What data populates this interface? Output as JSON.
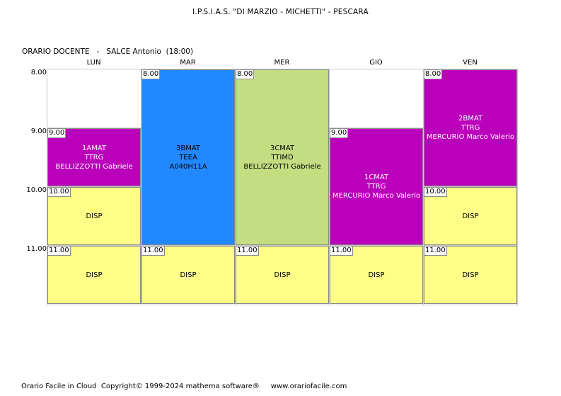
{
  "title": "I.P.S.I.A.S. \"DI MARZIO - MICHETTI\" - PESCARA",
  "teacher": {
    "label": "ORARIO DOCENTE",
    "name": "SALCE Antonio",
    "hours": "(18:00)"
  },
  "days": [
    "LUN",
    "MAR",
    "MER",
    "GIO",
    "VEN"
  ],
  "hours": [
    "8.00",
    "9.00",
    "10.00",
    "11.00"
  ],
  "colors": {
    "yellow": "#ffff88",
    "magenta": "#bb00bb",
    "blue": "#2288ff",
    "green": "#c4dd80",
    "empty": "#ffffff"
  },
  "lessons": [
    {
      "day": 0,
      "start": 1,
      "span": 1,
      "time": "9.00",
      "lines": [
        "1AMAT",
        "TTRG",
        "BELLIZZOTTI Gabriele"
      ],
      "color": "#bb00bb",
      "text_color": "#ffffff"
    },
    {
      "day": 0,
      "start": 2,
      "span": 1,
      "time": "10.00",
      "lines": [
        "DISP"
      ],
      "color": "#ffff88",
      "text_color": "#000000"
    },
    {
      "day": 0,
      "start": 3,
      "span": 1,
      "time": "11.00",
      "lines": [
        "DISP"
      ],
      "color": "#ffff88",
      "text_color": "#000000"
    },
    {
      "day": 1,
      "start": 0,
      "span": 3,
      "time": "8.00",
      "lines": [
        "3BMAT",
        "TEEA",
        "A040H11A"
      ],
      "color": "#2288ff",
      "text_color": "#000000"
    },
    {
      "day": 1,
      "start": 3,
      "span": 1,
      "time": "11.00",
      "lines": [
        "DISP"
      ],
      "color": "#ffff88",
      "text_color": "#000000"
    },
    {
      "day": 2,
      "start": 0,
      "span": 3,
      "time": "8.00",
      "lines": [
        "3CMAT",
        "TTIMD",
        "BELLIZZOTTI Gabriele"
      ],
      "color": "#c4dd80",
      "text_color": "#000000"
    },
    {
      "day": 2,
      "start": 3,
      "span": 1,
      "time": "11.00",
      "lines": [
        "DISP"
      ],
      "color": "#ffff88",
      "text_color": "#000000"
    },
    {
      "day": 3,
      "start": 1,
      "span": 2,
      "time": "9.00",
      "lines": [
        "1CMAT",
        "TTRG",
        "MERCURIO Marco Valerio"
      ],
      "color": "#bb00bb",
      "text_color": "#ffffff"
    },
    {
      "day": 3,
      "start": 3,
      "span": 1,
      "time": "11.00",
      "lines": [
        "DISP"
      ],
      "color": "#ffff88",
      "text_color": "#000000"
    },
    {
      "day": 4,
      "start": 0,
      "span": 2,
      "time": "8.00",
      "lines": [
        "2BMAT",
        "TTRG",
        "MERCURIO Marco Valerio"
      ],
      "color": "#bb00bb",
      "text_color": "#ffffff"
    },
    {
      "day": 4,
      "start": 2,
      "span": 1,
      "time": "10.00",
      "lines": [
        "DISP"
      ],
      "color": "#ffff88",
      "text_color": "#000000"
    },
    {
      "day": 4,
      "start": 3,
      "span": 1,
      "time": "11.00",
      "lines": [
        "DISP"
      ],
      "color": "#ffff88",
      "text_color": "#000000"
    }
  ],
  "footer": {
    "app": "Orario Facile in Cloud",
    "copyright": "Copyright© 1999-2024 mathema software®",
    "url": "www.orariofacile.com"
  }
}
